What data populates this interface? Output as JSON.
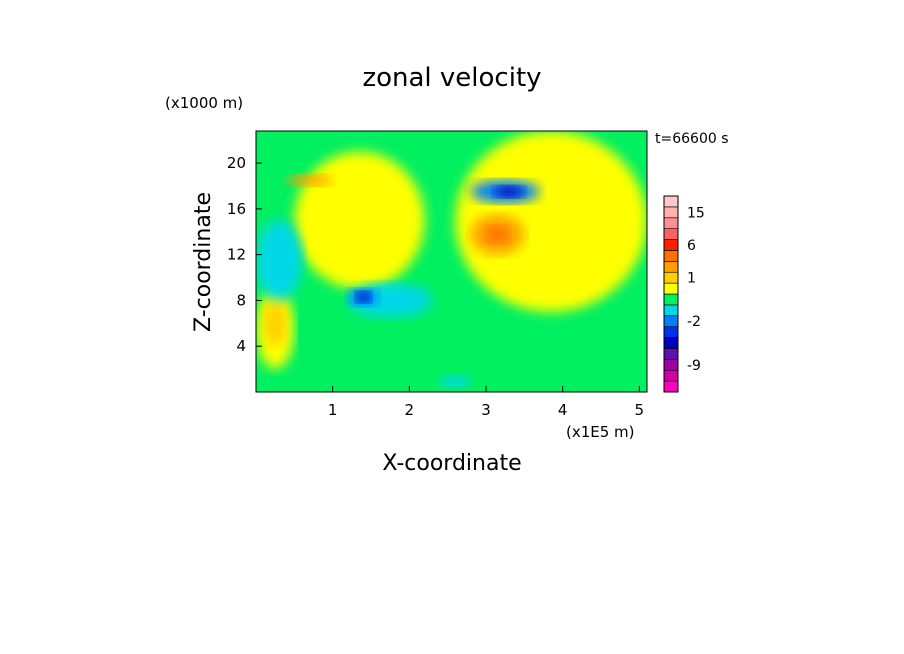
{
  "chart_data": {
    "type": "heatmap",
    "title": "zonal velocity",
    "xlabel": "X-coordinate",
    "ylabel": "Z-coordinate",
    "x_unit": "(x1E5 m)",
    "y_unit": "(x1000 m)",
    "time_label": "t=66600 s",
    "xlim": [
      0,
      5.1
    ],
    "ylim": [
      0,
      22.8
    ],
    "x_ticks": [
      "1",
      "2",
      "3",
      "4",
      "5"
    ],
    "x_tick_values": [
      1,
      2,
      3,
      4,
      5
    ],
    "y_ticks": [
      "4",
      "8",
      "12",
      "16",
      "20"
    ],
    "y_tick_values": [
      4,
      8,
      12,
      16,
      20
    ],
    "colorbar": {
      "levels": [
        {
          "value": -15,
          "color": "#ff00c0"
        },
        {
          "value": -12,
          "color": "#d000a8"
        },
        {
          "value": -9,
          "color": "#a000a0"
        },
        {
          "value": -6,
          "color": "#6010b0"
        },
        {
          "value": -4,
          "color": "#0000c0"
        },
        {
          "value": -3,
          "color": "#0030e8"
        },
        {
          "value": -2,
          "color": "#0080ff"
        },
        {
          "value": -1,
          "color": "#00d8e8"
        },
        {
          "value": 0,
          "color": "#00f060"
        },
        {
          "value": 0.5,
          "color": "#ffff00"
        },
        {
          "value": 1,
          "color": "#ffd000"
        },
        {
          "value": 2,
          "color": "#ffa000"
        },
        {
          "value": 4,
          "color": "#ff7000"
        },
        {
          "value": 6,
          "color": "#ff2000"
        },
        {
          "value": 9,
          "color": "#ff6060"
        },
        {
          "value": 12,
          "color": "#ff9090"
        },
        {
          "value": 15,
          "color": "#ffb0b0"
        },
        {
          "value": 18,
          "color": "#ffc8c8"
        }
      ],
      "tick_labels": [
        "15",
        "6",
        "1",
        "-2",
        "-9"
      ],
      "tick_values": [
        15,
        6,
        1,
        -2,
        -9
      ]
    },
    "field_regions": [
      {
        "value": 0,
        "x": [
          0,
          5.1
        ],
        "z": [
          0,
          22.8
        ]
      },
      {
        "value": 0.5,
        "x": [
          2.6,
          5.1
        ],
        "z": [
          7,
          22.8
        ]
      },
      {
        "value": 0.5,
        "x": [
          0,
          0.5
        ],
        "z": [
          2,
          9
        ]
      },
      {
        "value": 0.5,
        "x": [
          0.5,
          2.2
        ],
        "z": [
          9,
          21
        ]
      },
      {
        "value": 1,
        "x": [
          0.1,
          0.4
        ],
        "z": [
          4,
          8
        ]
      },
      {
        "value": 2,
        "x": [
          2.8,
          3.5
        ],
        "z": [
          12,
          15.5
        ]
      },
      {
        "value": 4,
        "x": [
          3.0,
          3.3
        ],
        "z": [
          13,
          14.5
        ]
      },
      {
        "value": 2,
        "x": [
          0.4,
          1.0
        ],
        "z": [
          18,
          19
        ]
      },
      {
        "value": -1,
        "x": [
          0.0,
          0.6
        ],
        "z": [
          8,
          15
        ]
      },
      {
        "value": -1,
        "x": [
          1.2,
          2.3
        ],
        "z": [
          6.5,
          9.5
        ]
      },
      {
        "value": -2,
        "x": [
          1.2,
          1.6
        ],
        "z": [
          7.5,
          9
        ]
      },
      {
        "value": -4,
        "x": [
          1.3,
          1.5
        ],
        "z": [
          7.8,
          8.8
        ]
      },
      {
        "value": -2,
        "x": [
          2.8,
          3.7
        ],
        "z": [
          16.5,
          18.5
        ]
      },
      {
        "value": -4,
        "x": [
          3.1,
          3.5
        ],
        "z": [
          17,
          18
        ]
      },
      {
        "value": -1,
        "x": [
          2.4,
          2.8
        ],
        "z": [
          0.3,
          1.5
        ]
      }
    ]
  }
}
